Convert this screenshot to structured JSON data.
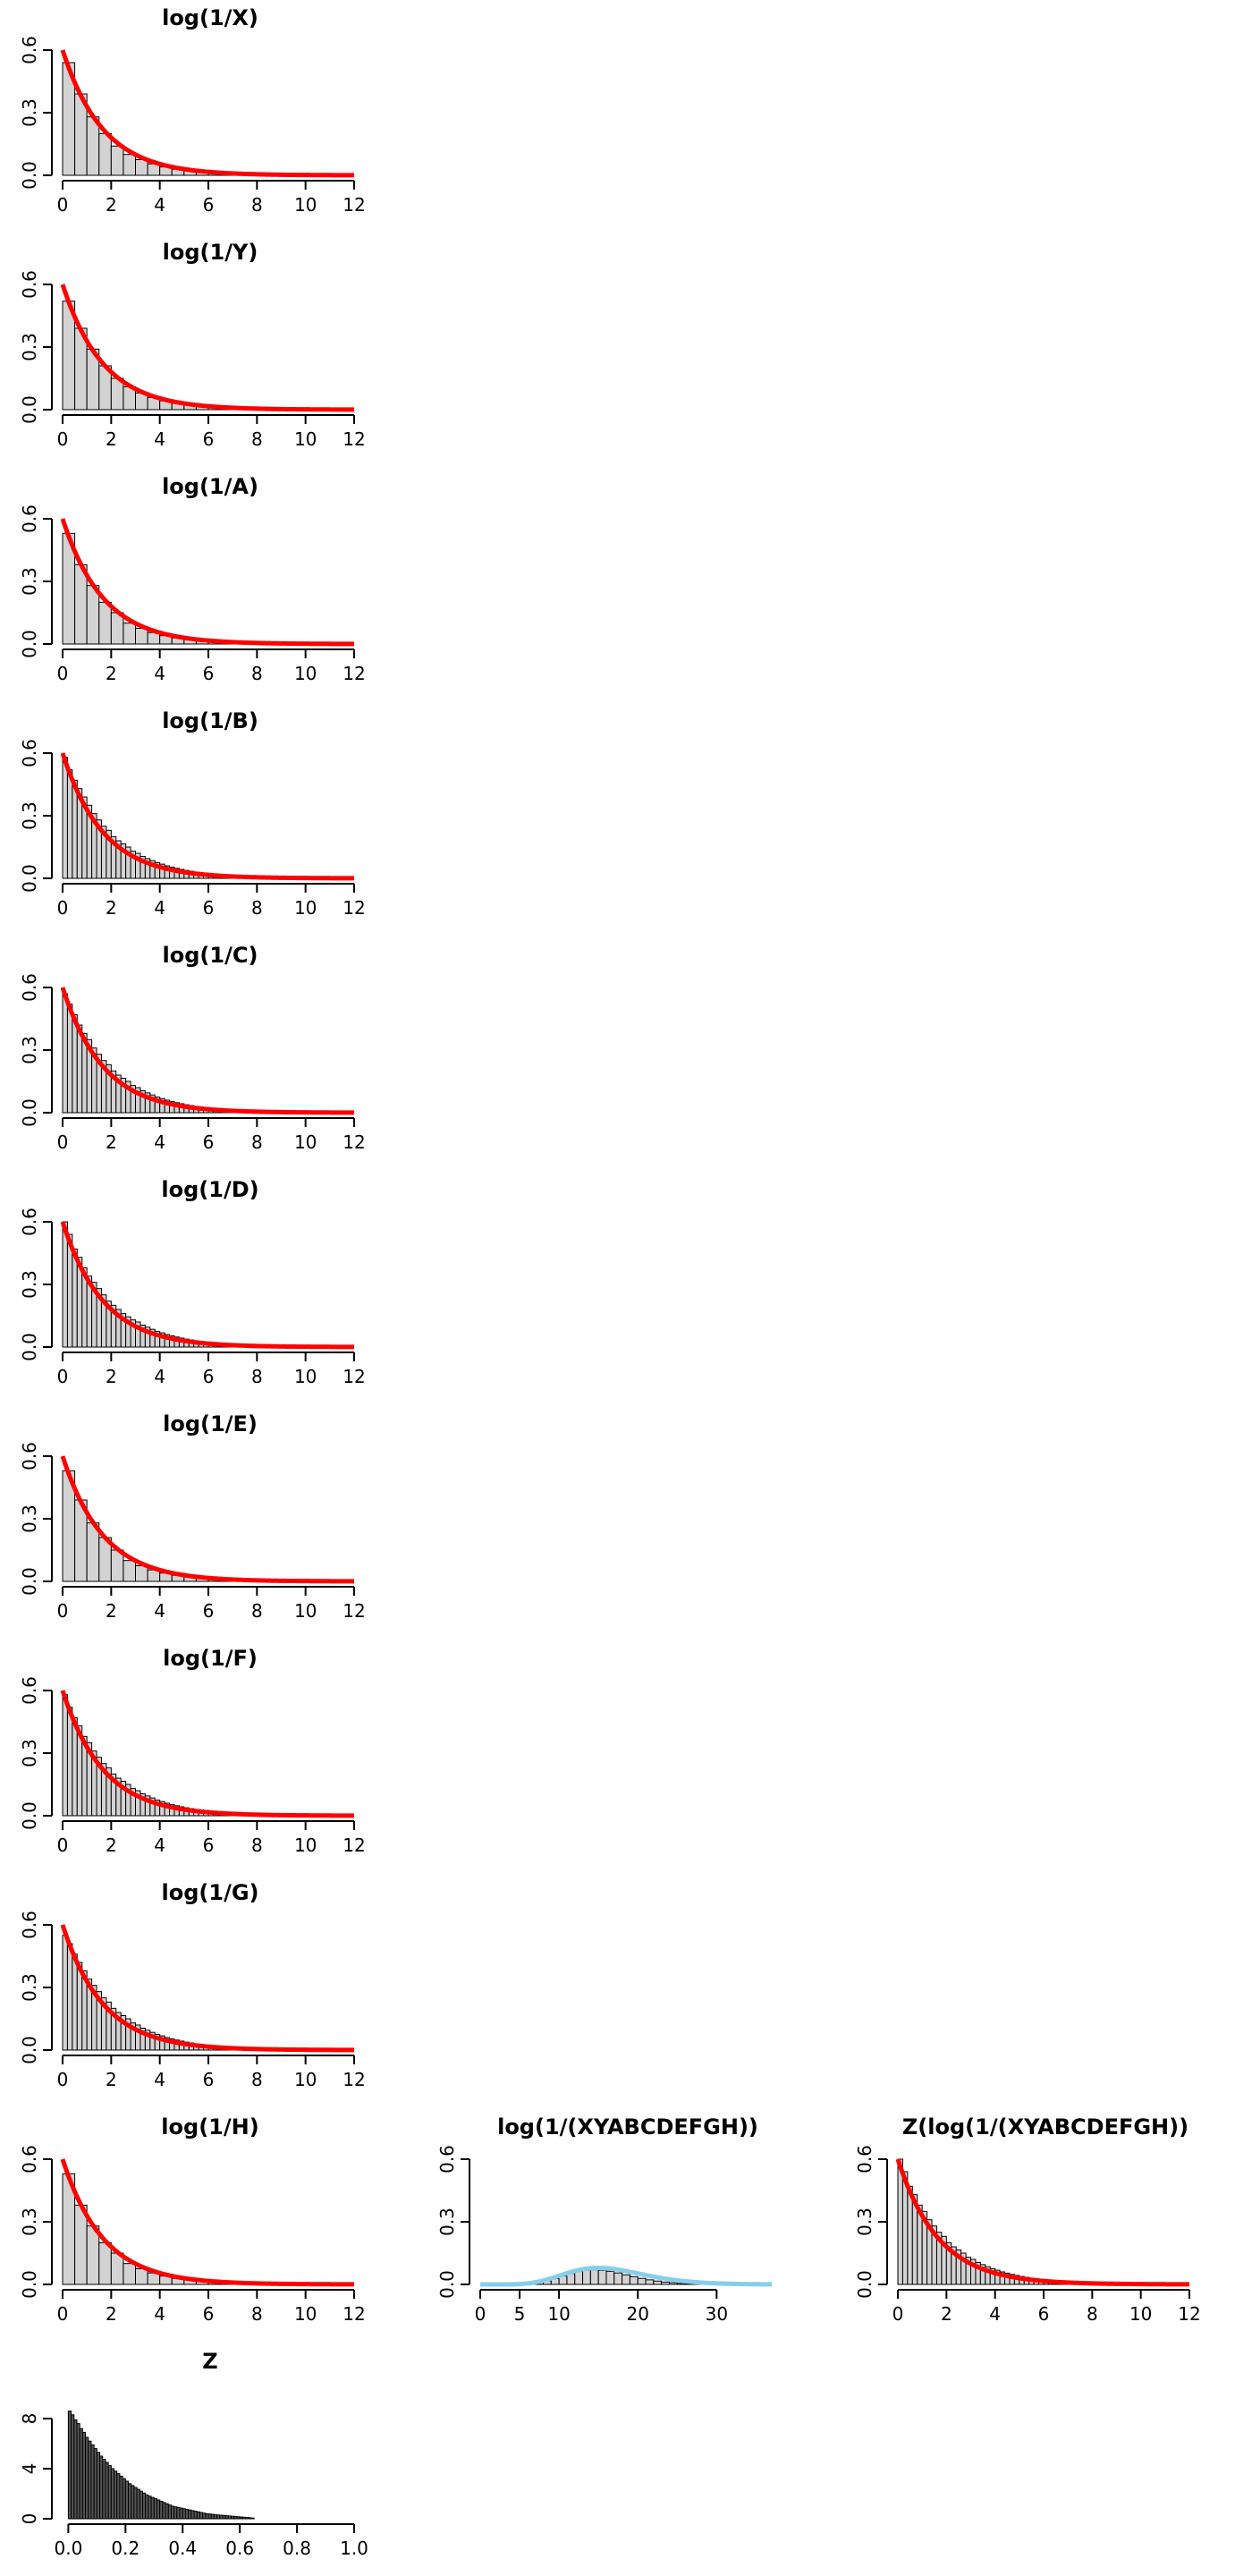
{
  "colors": {
    "bar_fill": "#d3d3d3",
    "bar_stroke": "#000000",
    "fit_red": "#ff0000",
    "fit_blue": "#87ceeb",
    "axis": "#000000"
  },
  "chart_data": [
    {
      "type": "bar",
      "panel": "r1c1",
      "title": "log(1/X)",
      "fit": {
        "kind": "exponential",
        "rate": 0.6,
        "color": "#ff0000"
      },
      "xlim": [
        0,
        12
      ],
      "xticks": [
        0,
        2,
        4,
        6,
        8,
        10,
        12
      ],
      "ylim": [
        0,
        0.6
      ],
      "yticks": [
        "0.0",
        "0.3",
        "0.6"
      ],
      "bin_width": 0.5,
      "values": [
        0.54,
        0.39,
        0.28,
        0.2,
        0.14,
        0.1,
        0.075,
        0.055,
        0.04,
        0.029,
        0.021,
        0.015,
        0.011,
        0.008,
        0.006,
        0.004,
        0.003,
        0.002,
        0.0015,
        0.001
      ]
    },
    {
      "type": "bar",
      "panel": "r2c1",
      "title": "log(1/Y)",
      "fit": {
        "kind": "exponential",
        "rate": 0.6,
        "color": "#ff0000"
      },
      "xlim": [
        0,
        12
      ],
      "xticks": [
        0,
        2,
        4,
        6,
        8,
        10,
        12
      ],
      "ylim": [
        0,
        0.6
      ],
      "yticks": [
        "0.0",
        "0.3",
        "0.6"
      ],
      "bin_width": 0.5,
      "values": [
        0.52,
        0.39,
        0.29,
        0.21,
        0.15,
        0.11,
        0.08,
        0.058,
        0.042,
        0.03,
        0.022,
        0.016,
        0.011,
        0.008,
        0.006,
        0.004,
        0.003,
        0.002,
        0.0015,
        0.001
      ]
    },
    {
      "type": "bar",
      "panel": "r3c1",
      "title": "log(1/A)",
      "fit": {
        "kind": "exponential",
        "rate": 0.6,
        "color": "#ff0000"
      },
      "xlim": [
        0,
        12
      ],
      "xticks": [
        0,
        2,
        4,
        6,
        8,
        10,
        12
      ],
      "ylim": [
        0,
        0.6
      ],
      "yticks": [
        "0.0",
        "0.3",
        "0.6"
      ],
      "bin_width": 0.5,
      "values": [
        0.53,
        0.38,
        0.28,
        0.2,
        0.15,
        0.1,
        0.075,
        0.055,
        0.04,
        0.029,
        0.021,
        0.015,
        0.011,
        0.008,
        0.006,
        0.004,
        0.003,
        0.002,
        0.0015,
        0.001
      ]
    },
    {
      "type": "bar",
      "panel": "r4c1",
      "title": "log(1/B)",
      "fit": {
        "kind": "exponential",
        "rate": 0.6,
        "color": "#ff0000"
      },
      "xlim": [
        0,
        12
      ],
      "xticks": [
        0,
        2,
        4,
        6,
        8,
        10,
        12
      ],
      "ylim": [
        0,
        0.6
      ],
      "yticks": [
        "0.0",
        "0.3",
        "0.6"
      ],
      "bin_width": 0.2,
      "values": [
        0.58,
        0.52,
        0.47,
        0.43,
        0.39,
        0.35,
        0.31,
        0.28,
        0.25,
        0.23,
        0.2,
        0.18,
        0.165,
        0.15,
        0.13,
        0.12,
        0.105,
        0.095,
        0.085,
        0.075,
        0.068,
        0.06,
        0.054,
        0.048,
        0.043,
        0.038,
        0.034,
        0.03,
        0.027,
        0.024,
        0.021,
        0.019,
        0.017,
        0.015,
        0.013,
        0.012,
        0.01,
        0.009,
        0.008,
        0.007
      ]
    },
    {
      "type": "bar",
      "panel": "r5c1",
      "title": "log(1/C)",
      "fit": {
        "kind": "exponential",
        "rate": 0.6,
        "color": "#ff0000"
      },
      "xlim": [
        0,
        12
      ],
      "xticks": [
        0,
        2,
        4,
        6,
        8,
        10,
        12
      ],
      "ylim": [
        0,
        0.6
      ],
      "yticks": [
        "0.0",
        "0.3",
        "0.6"
      ],
      "bin_width": 0.2,
      "values": [
        0.57,
        0.52,
        0.47,
        0.42,
        0.38,
        0.35,
        0.31,
        0.28,
        0.25,
        0.23,
        0.2,
        0.18,
        0.165,
        0.15,
        0.13,
        0.12,
        0.105,
        0.095,
        0.085,
        0.075,
        0.068,
        0.06,
        0.054,
        0.048,
        0.043,
        0.038,
        0.034,
        0.03,
        0.027,
        0.024,
        0.021,
        0.019,
        0.017,
        0.015,
        0.013,
        0.012,
        0.01,
        0.009,
        0.008,
        0.007
      ]
    },
    {
      "type": "bar",
      "panel": "r6c1",
      "title": "log(1/D)",
      "fit": {
        "kind": "exponential",
        "rate": 0.6,
        "color": "#ff0000"
      },
      "xlim": [
        0,
        12
      ],
      "xticks": [
        0,
        2,
        4,
        6,
        8,
        10,
        12
      ],
      "ylim": [
        0,
        0.6
      ],
      "yticks": [
        "0.0",
        "0.3",
        "0.6"
      ],
      "bin_width": 0.2,
      "values": [
        0.6,
        0.54,
        0.47,
        0.43,
        0.38,
        0.34,
        0.31,
        0.28,
        0.25,
        0.22,
        0.2,
        0.18,
        0.16,
        0.145,
        0.13,
        0.12,
        0.105,
        0.095,
        0.085,
        0.075,
        0.068,
        0.06,
        0.054,
        0.048,
        0.043,
        0.038,
        0.034,
        0.03,
        0.027,
        0.024,
        0.021,
        0.019,
        0.017,
        0.015,
        0.013,
        0.012,
        0.01,
        0.009,
        0.008,
        0.007
      ]
    },
    {
      "type": "bar",
      "panel": "r7c1",
      "title": "log(1/E)",
      "fit": {
        "kind": "exponential",
        "rate": 0.6,
        "color": "#ff0000"
      },
      "xlim": [
        0,
        12
      ],
      "xticks": [
        0,
        2,
        4,
        6,
        8,
        10,
        12
      ],
      "ylim": [
        0,
        0.6
      ],
      "yticks": [
        "0.0",
        "0.3",
        "0.6"
      ],
      "bin_width": 0.5,
      "values": [
        0.53,
        0.39,
        0.28,
        0.21,
        0.15,
        0.1,
        0.075,
        0.055,
        0.04,
        0.029,
        0.021,
        0.015,
        0.011,
        0.008,
        0.006,
        0.004,
        0.003,
        0.002,
        0.0015,
        0.001
      ]
    },
    {
      "type": "bar",
      "panel": "r8c1",
      "title": "log(1/F)",
      "fit": {
        "kind": "exponential",
        "rate": 0.6,
        "color": "#ff0000"
      },
      "xlim": [
        0,
        12
      ],
      "xticks": [
        0,
        2,
        4,
        6,
        8,
        10,
        12
      ],
      "ylim": [
        0,
        0.6
      ],
      "yticks": [
        "0.0",
        "0.3",
        "0.6"
      ],
      "bin_width": 0.2,
      "values": [
        0.58,
        0.52,
        0.47,
        0.43,
        0.38,
        0.35,
        0.31,
        0.28,
        0.25,
        0.23,
        0.2,
        0.18,
        0.165,
        0.15,
        0.13,
        0.12,
        0.105,
        0.095,
        0.085,
        0.075,
        0.068,
        0.06,
        0.054,
        0.048,
        0.043,
        0.038,
        0.034,
        0.03,
        0.027,
        0.024,
        0.021,
        0.019,
        0.017,
        0.015,
        0.013,
        0.012,
        0.01,
        0.009,
        0.008,
        0.007
      ]
    },
    {
      "type": "bar",
      "panel": "r9c1",
      "title": "log(1/G)",
      "fit": {
        "kind": "exponential",
        "rate": 0.6,
        "color": "#ff0000"
      },
      "xlim": [
        0,
        12
      ],
      "xticks": [
        0,
        2,
        4,
        6,
        8,
        10,
        12
      ],
      "ylim": [
        0,
        0.6
      ],
      "yticks": [
        "0.0",
        "0.3",
        "0.6"
      ],
      "bin_width": 0.2,
      "values": [
        0.55,
        0.51,
        0.46,
        0.42,
        0.38,
        0.34,
        0.31,
        0.28,
        0.25,
        0.23,
        0.2,
        0.18,
        0.165,
        0.15,
        0.13,
        0.12,
        0.105,
        0.095,
        0.085,
        0.075,
        0.068,
        0.06,
        0.054,
        0.048,
        0.043,
        0.038,
        0.034,
        0.03,
        0.027,
        0.024,
        0.021,
        0.019,
        0.017,
        0.015,
        0.013,
        0.012,
        0.01,
        0.009,
        0.008,
        0.007
      ]
    },
    {
      "type": "bar",
      "panel": "r10c1",
      "title": "log(1/H)",
      "fit": {
        "kind": "exponential",
        "rate": 0.6,
        "color": "#ff0000"
      },
      "xlim": [
        0,
        12
      ],
      "xticks": [
        0,
        2,
        4,
        6,
        8,
        10,
        12
      ],
      "ylim": [
        0,
        0.6
      ],
      "yticks": [
        "0.0",
        "0.3",
        "0.6"
      ],
      "bin_width": 0.5,
      "values": [
        0.53,
        0.38,
        0.28,
        0.2,
        0.15,
        0.1,
        0.075,
        0.055,
        0.04,
        0.029,
        0.021,
        0.015,
        0.011,
        0.008,
        0.006,
        0.004,
        0.003,
        0.002,
        0.0015,
        0.001
      ]
    },
    {
      "type": "bar",
      "panel": "r10c2",
      "title": "log(1/(XYABCDEFGH))",
      "fit": {
        "kind": "gamma",
        "shape": 10,
        "rate": 0.6,
        "color": "#87ceeb"
      },
      "xlim": [
        0,
        37
      ],
      "xticks": [
        0,
        5,
        10,
        20,
        30
      ],
      "ylim": [
        0,
        0.6
      ],
      "yticks": [
        "0.0",
        "0.3",
        "0.6"
      ],
      "bin_width": 1,
      "values": [
        0,
        0,
        0,
        0,
        0,
        0.001,
        0.004,
        0.009,
        0.017,
        0.028,
        0.04,
        0.052,
        0.062,
        0.068,
        0.07,
        0.068,
        0.063,
        0.055,
        0.046,
        0.037,
        0.029,
        0.022,
        0.016,
        0.011,
        0.008,
        0.005,
        0.003,
        0.002,
        0.001,
        0.001,
        0.0005,
        0,
        0,
        0,
        0
      ]
    },
    {
      "type": "bar",
      "panel": "r10c3",
      "title": "Z(log(1/(XYABCDEFGH))",
      "fit": {
        "kind": "exponential",
        "rate": 0.6,
        "color": "#ff0000"
      },
      "xlim": [
        0,
        12
      ],
      "xticks": [
        0,
        2,
        4,
        6,
        8,
        10,
        12
      ],
      "ylim": [
        0,
        0.6
      ],
      "yticks": [
        "0.0",
        "0.3",
        "0.6"
      ],
      "bin_width": 0.2,
      "values": [
        0.6,
        0.54,
        0.47,
        0.43,
        0.38,
        0.35,
        0.31,
        0.28,
        0.25,
        0.23,
        0.2,
        0.18,
        0.165,
        0.15,
        0.13,
        0.12,
        0.105,
        0.095,
        0.085,
        0.075,
        0.068,
        0.06,
        0.054,
        0.048,
        0.043,
        0.038,
        0.034,
        0.03,
        0.027,
        0.024,
        0.021,
        0.019,
        0.017,
        0.015,
        0.013,
        0.012,
        0.01,
        0.009,
        0.008,
        0.007
      ]
    },
    {
      "type": "bar",
      "panel": "r11c1",
      "title": "Z",
      "fit": null,
      "xlim": [
        -0.02,
        1.0
      ],
      "xticks": [
        "0.0",
        "0.2",
        "0.4",
        "0.6",
        "0.8",
        "1.0"
      ],
      "ylim": [
        0,
        10
      ],
      "yticks": [
        "0",
        "4",
        "8"
      ],
      "bin_width": 0.01,
      "values": [
        8.6,
        8.3,
        7.9,
        7.6,
        7.2,
        6.9,
        6.5,
        6.2,
        5.9,
        5.6,
        5.3,
        5.0,
        4.75,
        4.5,
        4.25,
        4.0,
        3.8,
        3.6,
        3.4,
        3.2,
        3.0,
        2.8,
        2.65,
        2.5,
        2.35,
        2.2,
        2.05,
        1.9,
        1.8,
        1.7,
        1.6,
        1.5,
        1.4,
        1.3,
        1.2,
        1.1,
        1.0,
        0.95,
        0.9,
        0.85,
        0.8,
        0.75,
        0.7,
        0.65,
        0.6,
        0.55,
        0.5,
        0.45,
        0.4,
        0.38,
        0.35,
        0.32,
        0.3,
        0.28,
        0.26,
        0.24,
        0.22,
        0.2,
        0.18,
        0.16,
        0.14,
        0.12,
        0.1,
        0.08,
        0.06
      ]
    }
  ]
}
